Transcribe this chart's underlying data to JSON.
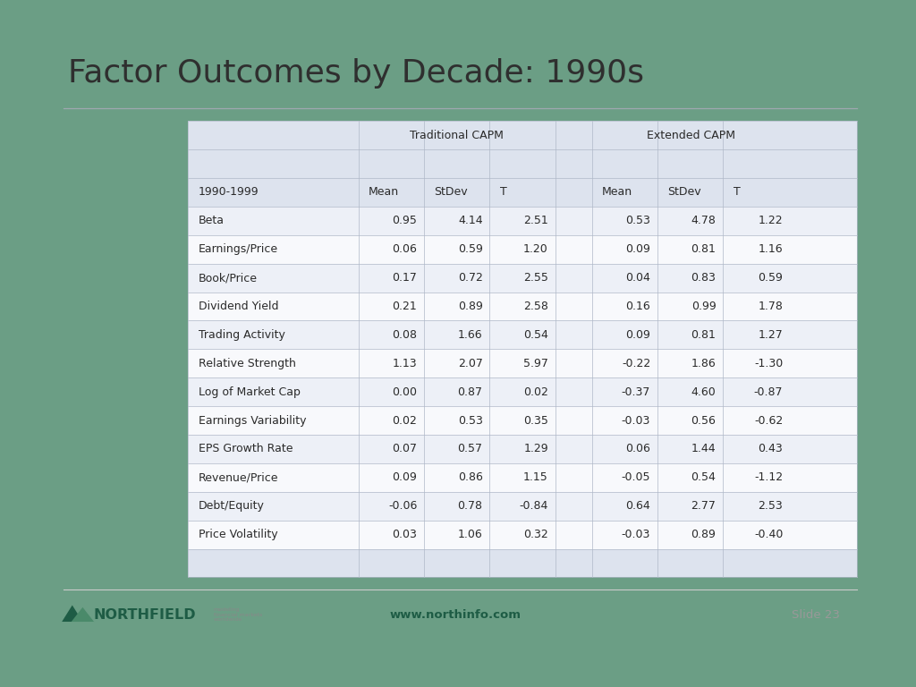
{
  "title": "Factor Outcomes by Decade: 1990s",
  "title_fontsize": 26,
  "title_color": "#2f2f2f",
  "background_outer": "#6b9e85",
  "background_inner": "#ffffff",
  "slide_number": "Slide 23",
  "website": "www.northinfo.com",
  "rows": [
    [
      "Beta",
      "0.95",
      "4.14",
      "2.51",
      "0.53",
      "4.78",
      "1.22"
    ],
    [
      "Earnings/Price",
      "0.06",
      "0.59",
      "1.20",
      "0.09",
      "0.81",
      "1.16"
    ],
    [
      "Book/Price",
      "0.17",
      "0.72",
      "2.55",
      "0.04",
      "0.83",
      "0.59"
    ],
    [
      "Dividend Yield",
      "0.21",
      "0.89",
      "2.58",
      "0.16",
      "0.99",
      "1.78"
    ],
    [
      "Trading Activity",
      "0.08",
      "1.66",
      "0.54",
      "0.09",
      "0.81",
      "1.27"
    ],
    [
      "Relative Strength",
      "1.13",
      "2.07",
      "5.97",
      "-0.22",
      "1.86",
      "-1.30"
    ],
    [
      "Log of Market Cap",
      "0.00",
      "0.87",
      "0.02",
      "-0.37",
      "4.60",
      "-0.87"
    ],
    [
      "Earnings Variability",
      "0.02",
      "0.53",
      "0.35",
      "-0.03",
      "0.56",
      "-0.62"
    ],
    [
      "EPS Growth Rate",
      "0.07",
      "0.57",
      "1.29",
      "0.06",
      "1.44",
      "0.43"
    ],
    [
      "Revenue/Price",
      "0.09",
      "0.86",
      "1.15",
      "-0.05",
      "0.54",
      "-1.12"
    ],
    [
      "Debt/Equity",
      "-0.06",
      "0.78",
      "-0.84",
      "0.64",
      "2.77",
      "2.53"
    ],
    [
      "Price Volatility",
      "0.03",
      "1.06",
      "0.32",
      "-0.03",
      "0.89",
      "-0.40"
    ]
  ],
  "table_header_bg": "#dde3ee",
  "table_row_bg_odd": "#edf0f7",
  "table_row_bg_even": "#f8f9fc",
  "table_text_color": "#2a2a2a",
  "separator_color": "#b0b8c8",
  "teal_color": "#2d6b52",
  "footer_text_color": "#999999",
  "northfield_green": "#1e5c45"
}
